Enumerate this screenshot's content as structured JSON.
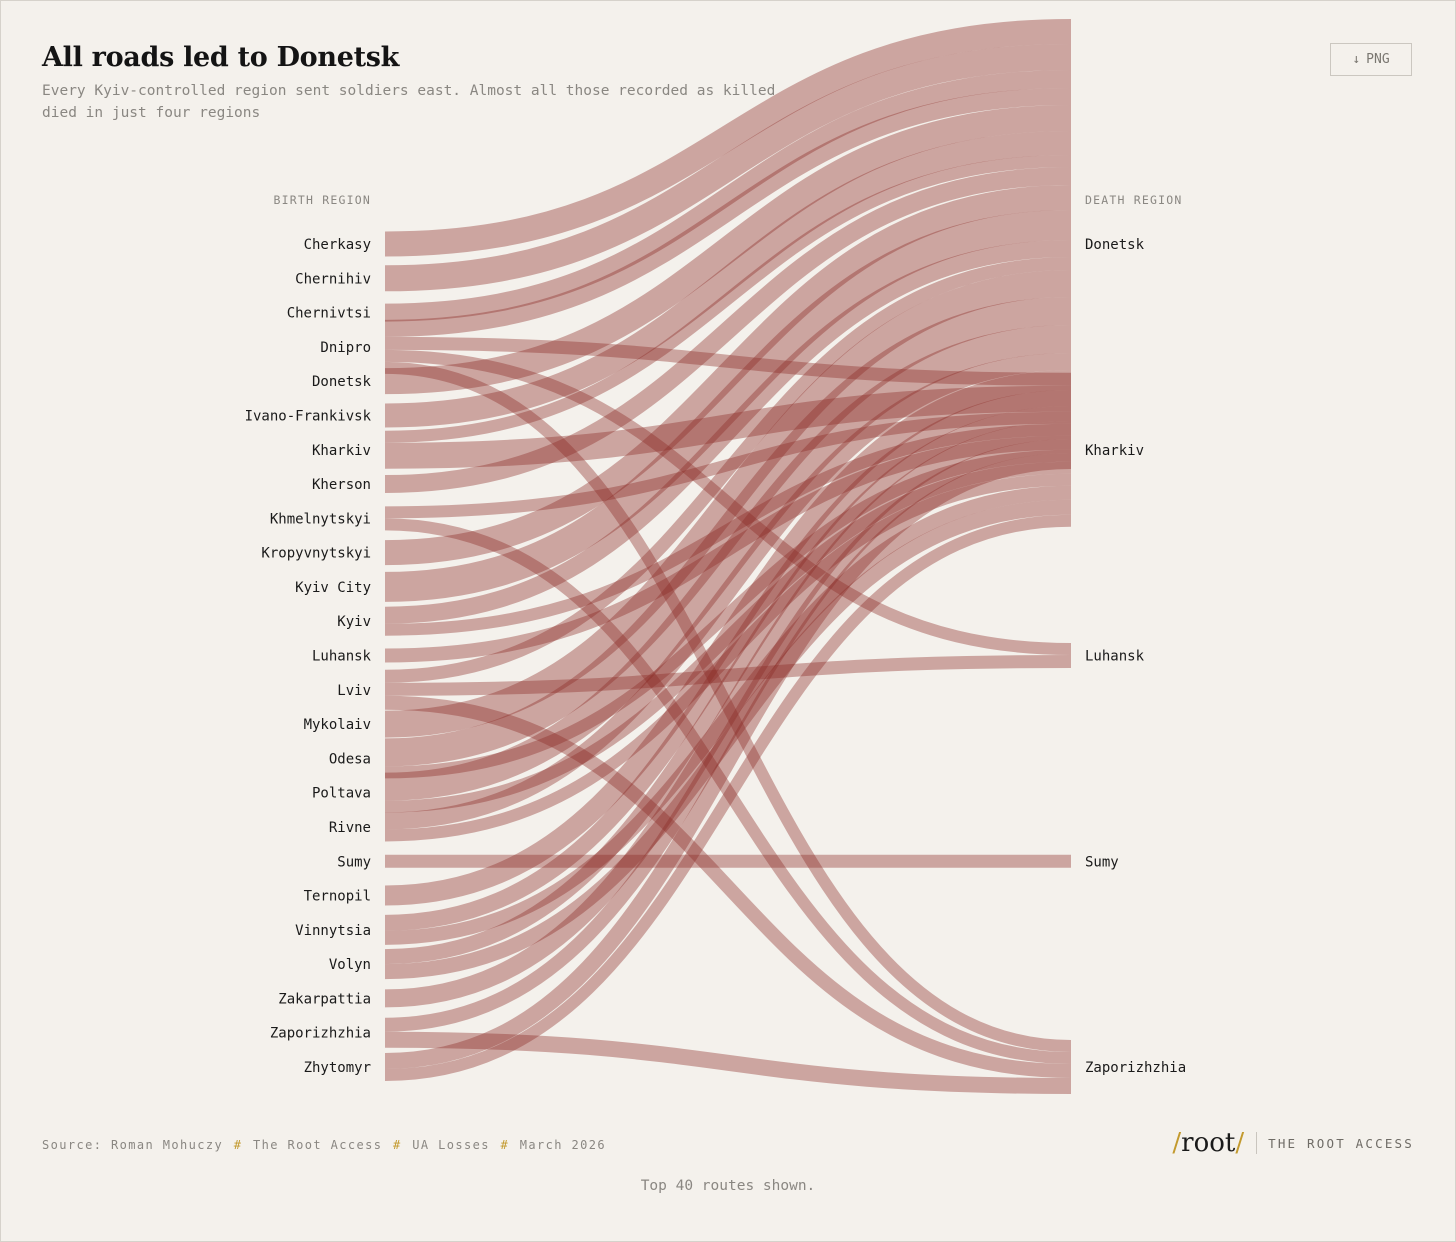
{
  "header": {
    "title": "All roads led to Donetsk",
    "subtitle": "Every Kyiv-controlled region sent soldiers east. Almost all those recorded as killed died in just four regions"
  },
  "toolbar": {
    "download_icon": "↓",
    "download_label": "PNG"
  },
  "colors": {
    "background": "#f4f1ec",
    "flow": "#8b2a24",
    "accent": "#c39a2e"
  },
  "chart_data": {
    "type": "sankey",
    "left_header": "BIRTH REGION",
    "right_header": "DEATH REGION",
    "sources": [
      "Cherkasy",
      "Chernihiv",
      "Chernivtsi",
      "Dnipro",
      "Donetsk",
      "Ivano-Frankivsk",
      "Kharkiv",
      "Kherson",
      "Khmelnytskyi",
      "Kropyvnytskyi",
      "Kyiv City",
      "Kyiv",
      "Luhansk",
      "Lviv",
      "Mykolaiv",
      "Odesa",
      "Poltava",
      "Rivne",
      "Sumy",
      "Ternopil",
      "Vinnytsia",
      "Volyn",
      "Zakarpattia",
      "Zaporizhzhia",
      "Zhytomyr"
    ],
    "targets": [
      "Donetsk",
      "Kharkiv",
      "Luhansk",
      "Sumy",
      "Zaporizhzhia"
    ],
    "flows": [
      {
        "source": "Cherkasy",
        "target": "Donetsk",
        "value": 25
      },
      {
        "source": "Chernihiv",
        "target": "Donetsk",
        "value": 26
      },
      {
        "source": "Chernivtsi",
        "target": "Donetsk",
        "value": 18
      },
      {
        "source": "Dnipro",
        "target": "Donetsk",
        "value": 17
      },
      {
        "source": "Dnipro",
        "target": "Kharkiv",
        "value": 13
      },
      {
        "source": "Dnipro",
        "target": "Zaporizhzhia",
        "value": 12
      },
      {
        "source": "Donetsk",
        "target": "Donetsk",
        "value": 26
      },
      {
        "source": "Ivano-Frankivsk",
        "target": "Donetsk",
        "value": 24
      },
      {
        "source": "Kharkiv",
        "target": "Kharkiv",
        "value": 26
      },
      {
        "source": "Kherson",
        "target": "Donetsk",
        "value": 18
      },
      {
        "source": "Khmelnytskyi",
        "target": "Kharkiv",
        "value": 12
      },
      {
        "source": "Khmelnytskyi",
        "target": "Zaporizhzhia",
        "value": 12
      },
      {
        "source": "Kropyvnytskyi",
        "target": "Donetsk",
        "value": 25
      },
      {
        "source": "Kyiv City",
        "target": "Donetsk",
        "value": 30
      },
      {
        "source": "Kyiv",
        "target": "Donetsk",
        "value": 17
      },
      {
        "source": "Kyiv",
        "target": "Kharkiv",
        "value": 12
      },
      {
        "source": "Luhansk",
        "target": "Kharkiv",
        "value": 14
      },
      {
        "source": "Lviv",
        "target": "Donetsk",
        "value": 13
      },
      {
        "source": "Lviv",
        "target": "Luhansk",
        "value": 13
      },
      {
        "source": "Lviv",
        "target": "Zaporizhzhia",
        "value": 14
      },
      {
        "source": "Mykolaiv",
        "target": "Donetsk",
        "value": 27
      },
      {
        "source": "Odesa",
        "target": "Donetsk",
        "value": 28
      },
      {
        "source": "Poltava",
        "target": "Donetsk",
        "value": 28
      },
      {
        "source": "Rivne",
        "target": "Kharkiv",
        "value": 12
      },
      {
        "source": "Rivne",
        "target": "Donetsk",
        "value": 17
      },
      {
        "source": "Sumy",
        "target": "Sumy",
        "value": 13
      },
      {
        "source": "Ternopil",
        "target": "Donetsk",
        "value": 20
      },
      {
        "source": "Vinnytsia",
        "target": "Kharkiv",
        "value": 14
      },
      {
        "source": "Vinnytsia",
        "target": "Donetsk",
        "value": 16
      },
      {
        "source": "Volyn",
        "target": "Kharkiv",
        "value": 15
      },
      {
        "source": "Volyn",
        "target": "Donetsk",
        "value": 15
      },
      {
        "source": "Zakarpattia",
        "target": "Donetsk",
        "value": 18
      },
      {
        "source": "Zaporizhzhia",
        "target": "Zaporizhzhia",
        "value": 16
      },
      {
        "source": "Zaporizhzhia",
        "target": "Donetsk",
        "value": 14
      },
      {
        "source": "Zhytomyr",
        "target": "Kharkiv",
        "value": 12
      },
      {
        "source": "Zhytomyr",
        "target": "Donetsk",
        "value": 16
      },
      {
        "source": "Dnipro",
        "target": "Luhansk",
        "value": 12
      },
      {
        "source": "Odesa",
        "target": "Kharkiv",
        "value": 12
      },
      {
        "source": "Kharkiv",
        "target": "Donetsk",
        "value": 12
      },
      {
        "source": "Poltava",
        "target": "Kharkiv",
        "value": 12
      }
    ]
  },
  "footer": {
    "source_items": [
      "Source: Roman Mohuczy",
      "The Root Access",
      "UA Losses",
      "March 2026"
    ],
    "separator": "#",
    "brand_slash": "/",
    "brand_word": "root",
    "brand_name": "THE ROOT ACCESS",
    "note": "Top 40 routes shown."
  }
}
